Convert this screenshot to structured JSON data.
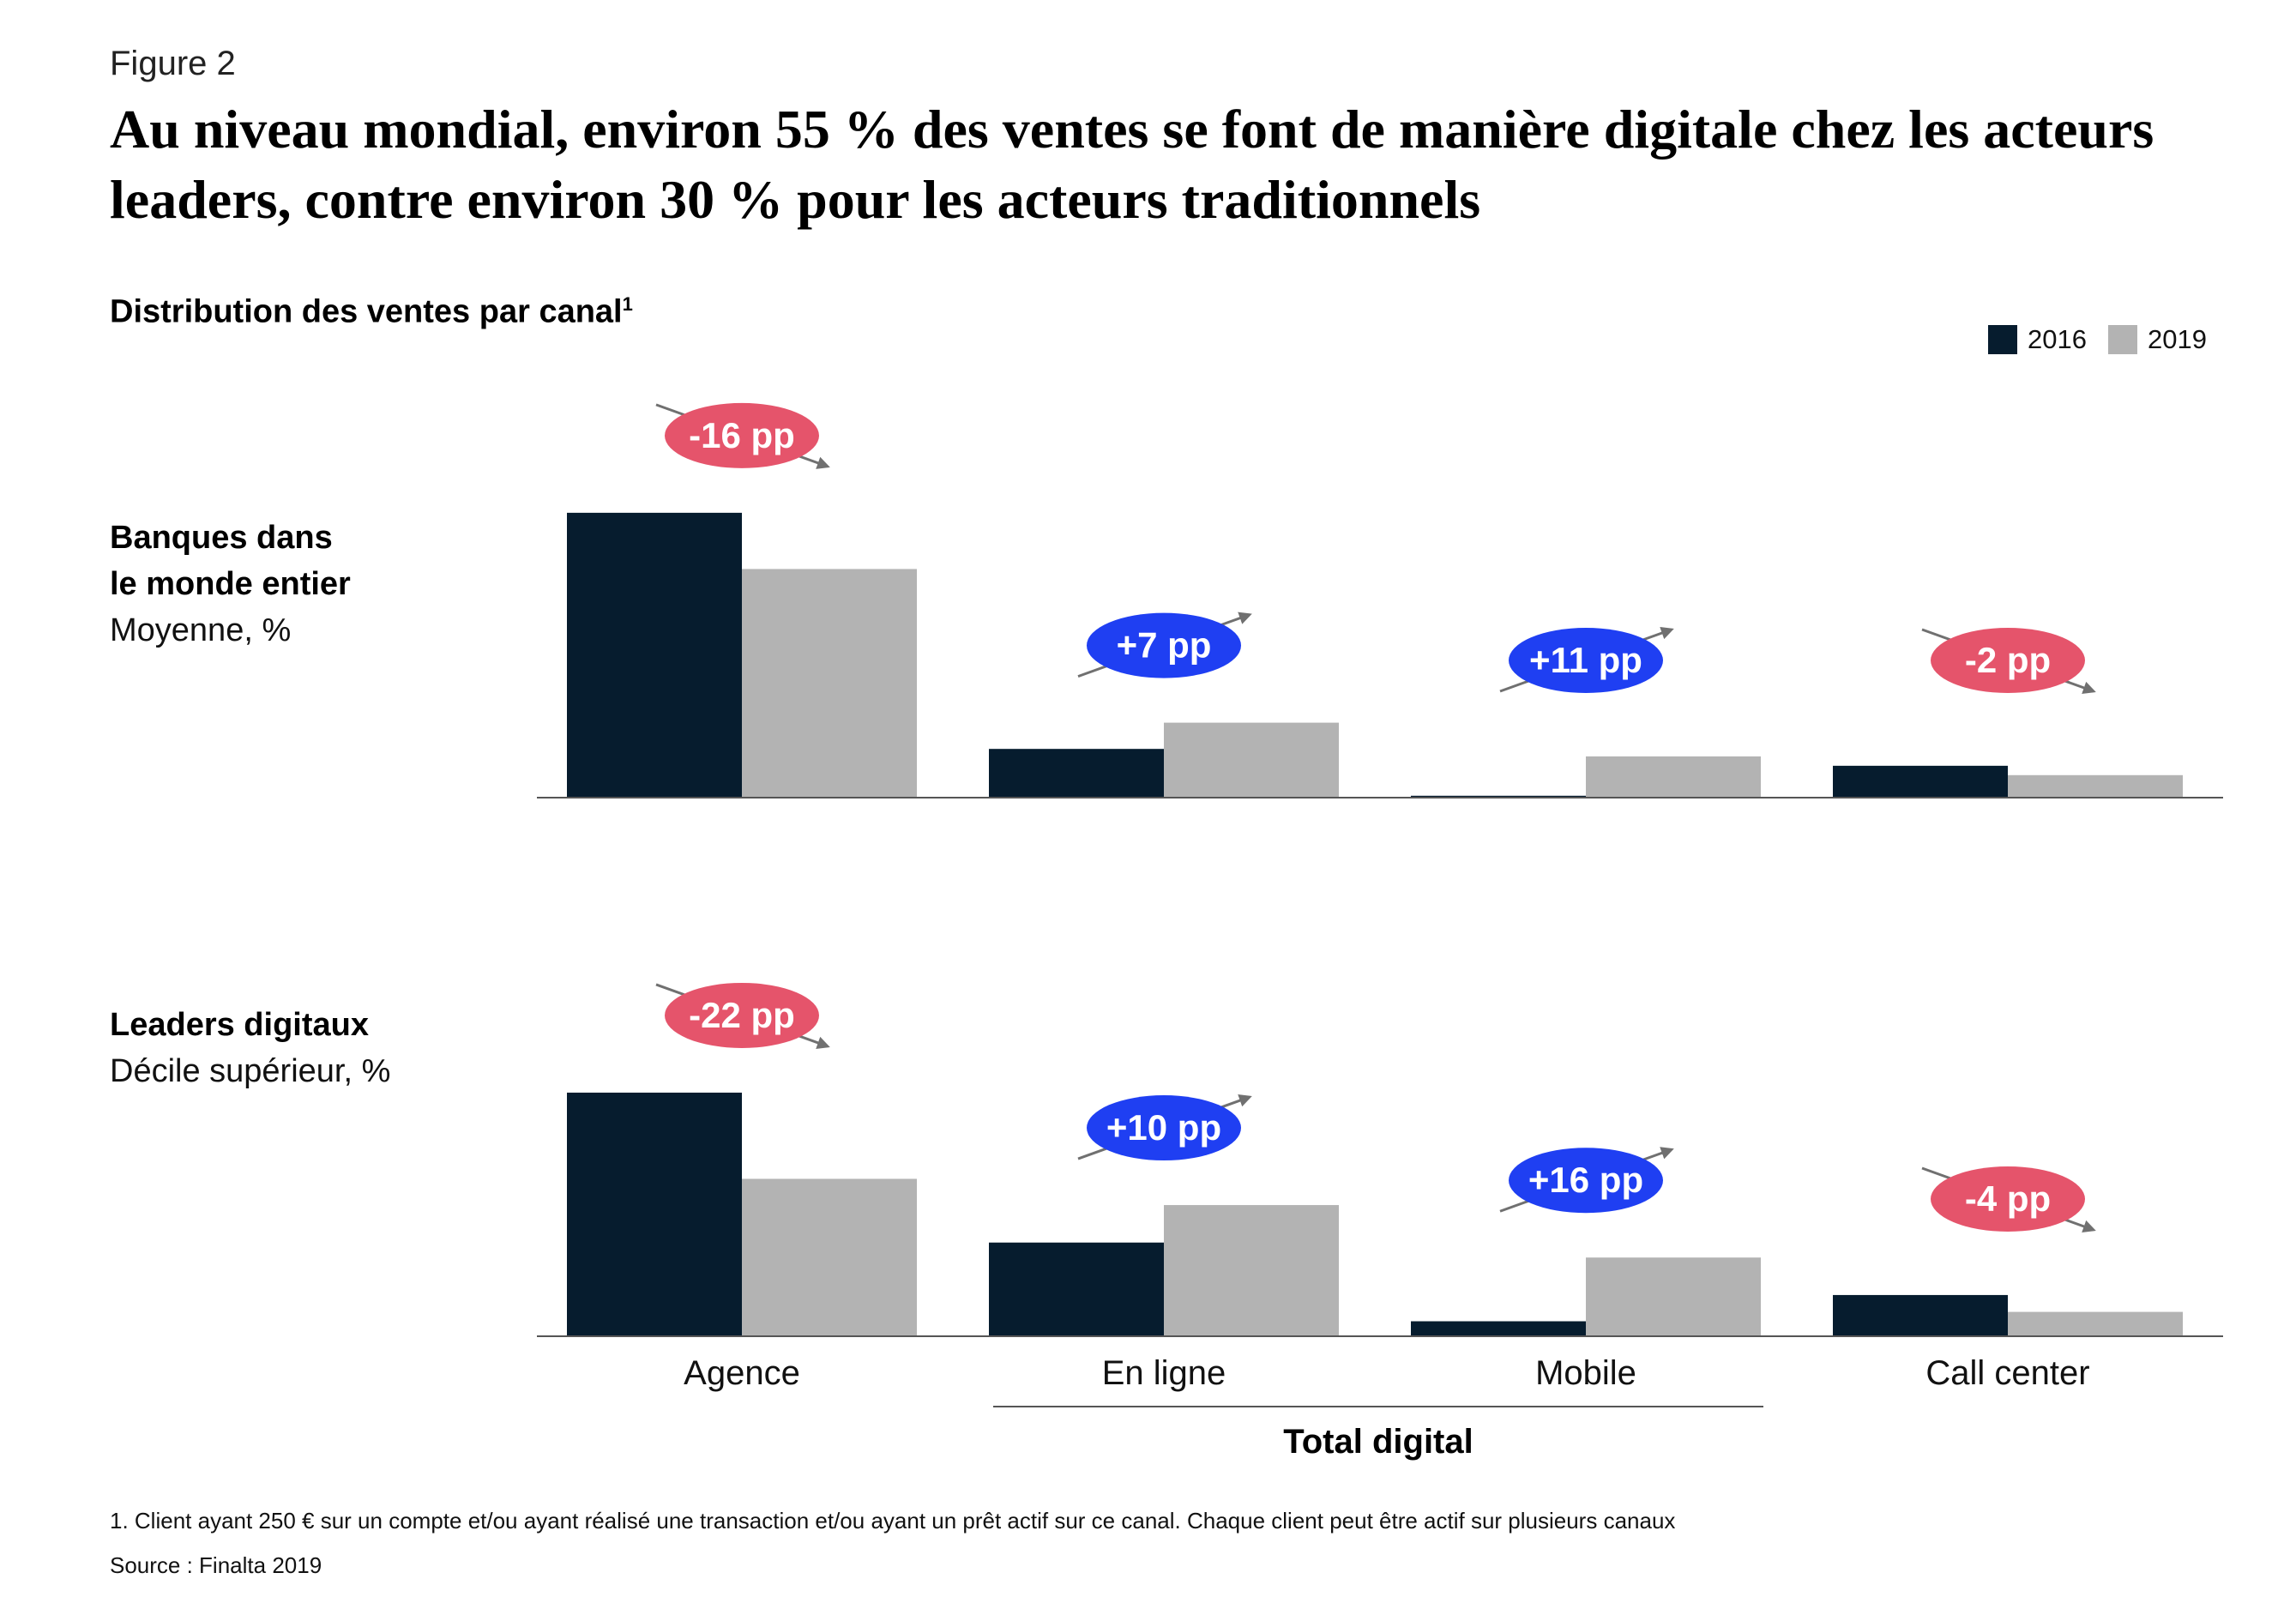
{
  "figure_label": "Figure 2",
  "title": "Au niveau mondial, environ 55 % des ventes se font de manière digitale chez les acteurs leaders, contre environ 30 % pour les acteurs traditionnels",
  "subtitle": "Distribution des ventes par canal",
  "subtitle_note": "1",
  "footnote": "1.    Client ayant 250 € sur un compte et/ou ayant réalisé une transaction et/ou ayant un prêt actif sur ce canal. Chaque client peut être actif sur plusieurs canaux",
  "source": "Source : Finalta 2019",
  "colors": {
    "2016": "#061c2e",
    "2019": "#b3b3b3",
    "decrease": "#e5546b",
    "increase": "#1f3ff2",
    "arrow": "#707070"
  },
  "chart_data": {
    "type": "bar",
    "categories": [
      "Agence",
      "En ligne",
      "Mobile",
      "Call center"
    ],
    "group_label": "Total digital",
    "legend": [
      "2016",
      "2019"
    ],
    "panels": [
      {
        "label": "Banques dans le monde entier",
        "label_lines": [
          "Banques dans",
          "le monde entier"
        ],
        "sublabel": "Moyenne, %",
        "series": [
          {
            "name": "2016",
            "values": [
              76,
              13,
              0.5,
              8.5
            ]
          },
          {
            "name": "2019",
            "values": [
              61,
              20,
              11,
              6
            ]
          }
        ],
        "changes": [
          "-16 pp",
          "+7 pp",
          "+11 pp",
          "-2 pp"
        ]
      },
      {
        "label": "Leaders digitaux",
        "label_lines": [
          "Leaders digitaux"
        ],
        "sublabel": "Décile supérieur, %",
        "series": [
          {
            "name": "2016",
            "values": [
              65,
              25,
              4,
              11
            ]
          },
          {
            "name": "2019",
            "values": [
              42,
              35,
              21,
              6.5
            ]
          }
        ],
        "changes": [
          "-22 pp",
          "+10 pp",
          "+16 pp",
          "-4 pp"
        ]
      }
    ]
  }
}
